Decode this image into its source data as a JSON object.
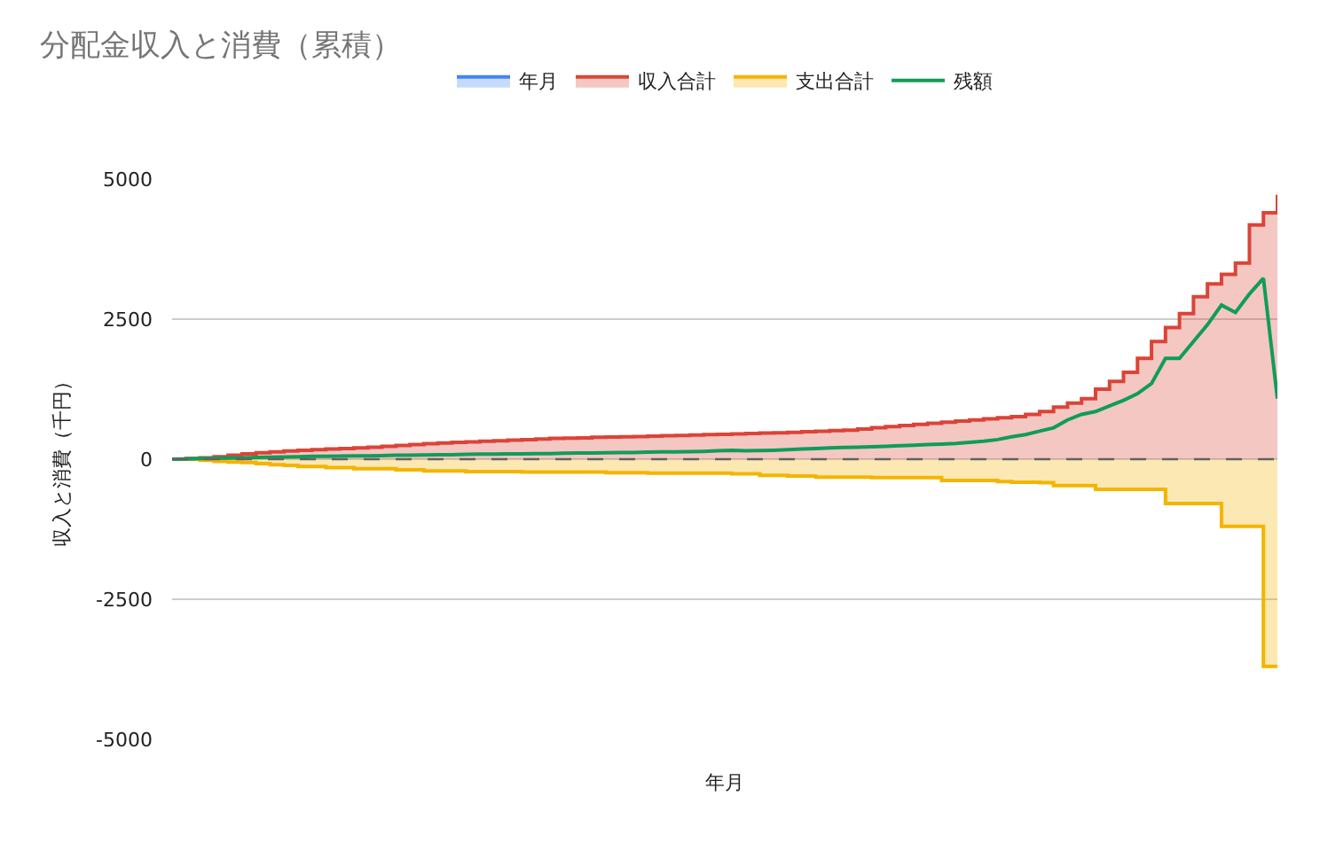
{
  "chart_data": {
    "type": "step",
    "title": "分配金収入と消費（累積）",
    "xlabel": "年月",
    "ylabel": "収入と消費（千円）",
    "categories": [
      null,
      null,
      null,
      null,
      null,
      null,
      null,
      null,
      null,
      null,
      null,
      null,
      null,
      null,
      null,
      null,
      null,
      null,
      null,
      null,
      null,
      null,
      null,
      null,
      null,
      null,
      null,
      null,
      null,
      null,
      null,
      null,
      null,
      null,
      null,
      null,
      null,
      null,
      null,
      null,
      null,
      null,
      null,
      null,
      null,
      null,
      null,
      null,
      null,
      null,
      null,
      null,
      null,
      null,
      null,
      null,
      null,
      null,
      null,
      null,
      null,
      null,
      null,
      null,
      null,
      null,
      null,
      null,
      null,
      null,
      null,
      null,
      null,
      null,
      null,
      null,
      null,
      null,
      null,
      null
    ],
    "series": [
      {
        "name": "年月",
        "color": "#4285f4",
        "values": [
          null,
          null,
          null,
          null,
          null,
          null,
          null,
          null,
          null,
          null,
          null,
          null,
          null,
          null,
          null,
          null,
          null,
          null,
          null,
          null,
          null,
          null,
          null,
          null,
          null,
          null,
          null,
          null,
          null,
          null,
          null,
          null,
          null,
          null,
          null,
          null,
          null,
          null,
          null,
          null,
          null,
          null,
          null,
          null,
          null,
          null,
          null,
          null,
          null,
          null,
          null,
          null,
          null,
          null,
          null,
          null,
          null,
          null,
          null,
          null,
          null,
          null,
          null,
          null,
          null,
          null,
          null,
          null,
          null,
          null,
          null,
          null,
          null,
          null,
          null,
          null,
          null,
          null,
          null,
          null
        ]
      },
      {
        "name": "収入合計",
        "color": "#db4437",
        "values": [
          0,
          10,
          25,
          45,
          70,
          95,
          115,
          130,
          145,
          160,
          170,
          180,
          190,
          200,
          215,
          230,
          245,
          260,
          275,
          290,
          300,
          310,
          320,
          330,
          340,
          350,
          360,
          370,
          375,
          380,
          390,
          395,
          400,
          405,
          410,
          420,
          425,
          430,
          440,
          445,
          450,
          460,
          465,
          470,
          480,
          490,
          500,
          510,
          520,
          540,
          560,
          580,
          600,
          620,
          640,
          660,
          680,
          700,
          720,
          740,
          760,
          800,
          850,
          930,
          1000,
          1080,
          1250,
          1390,
          1550,
          1800,
          2100,
          2350,
          2600,
          2900,
          3130,
          3300,
          3500,
          4180,
          4400,
          4720
        ]
      },
      {
        "name": "支出合計",
        "color": "#f4b400",
        "values": [
          0,
          0,
          -20,
          -40,
          -50,
          -60,
          -80,
          -100,
          -110,
          -130,
          -130,
          -150,
          -150,
          -170,
          -170,
          -170,
          -190,
          -190,
          -210,
          -210,
          -210,
          -220,
          -220,
          -220,
          -220,
          -230,
          -230,
          -230,
          -230,
          -230,
          -230,
          -240,
          -240,
          -240,
          -250,
          -250,
          -250,
          -250,
          -250,
          -250,
          -260,
          -260,
          -290,
          -290,
          -300,
          -300,
          -320,
          -320,
          -320,
          -320,
          -330,
          -330,
          -330,
          -330,
          -330,
          -380,
          -380,
          -380,
          -380,
          -400,
          -410,
          -410,
          -420,
          -470,
          -470,
          -470,
          -540,
          -540,
          -540,
          -540,
          -540,
          -790,
          -790,
          -790,
          -790,
          -1200,
          -1200,
          -1200,
          -3700,
          -3700
        ]
      },
      {
        "name": "残額",
        "type": "line",
        "color": "#0f9d58",
        "values": [
          0,
          5,
          10,
          15,
          20,
          25,
          30,
          35,
          40,
          45,
          50,
          50,
          55,
          60,
          60,
          65,
          70,
          70,
          75,
          80,
          80,
          85,
          90,
          90,
          95,
          95,
          100,
          100,
          105,
          110,
          110,
          115,
          120,
          120,
          125,
          130,
          130,
          135,
          140,
          150,
          160,
          150,
          155,
          160,
          170,
          180,
          190,
          200,
          210,
          215,
          220,
          230,
          240,
          250,
          260,
          270,
          280,
          300,
          320,
          350,
          400,
          440,
          500,
          560,
          700,
          800,
          850,
          950,
          1050,
          1170,
          1350,
          1800,
          1800,
          2100,
          2400,
          2750,
          2620,
          2950,
          3230,
          1080
        ]
      }
    ],
    "ylim": [
      -5000,
      5000
    ],
    "yticks": [
      -5000,
      -2500,
      0,
      2500,
      5000
    ],
    "ref_lines": [
      {
        "axis": "y",
        "value": 0,
        "color": "#5f6368",
        "line_style": "dashed"
      }
    ],
    "grid": "y",
    "legend": "top",
    "tick_labels": "y"
  }
}
